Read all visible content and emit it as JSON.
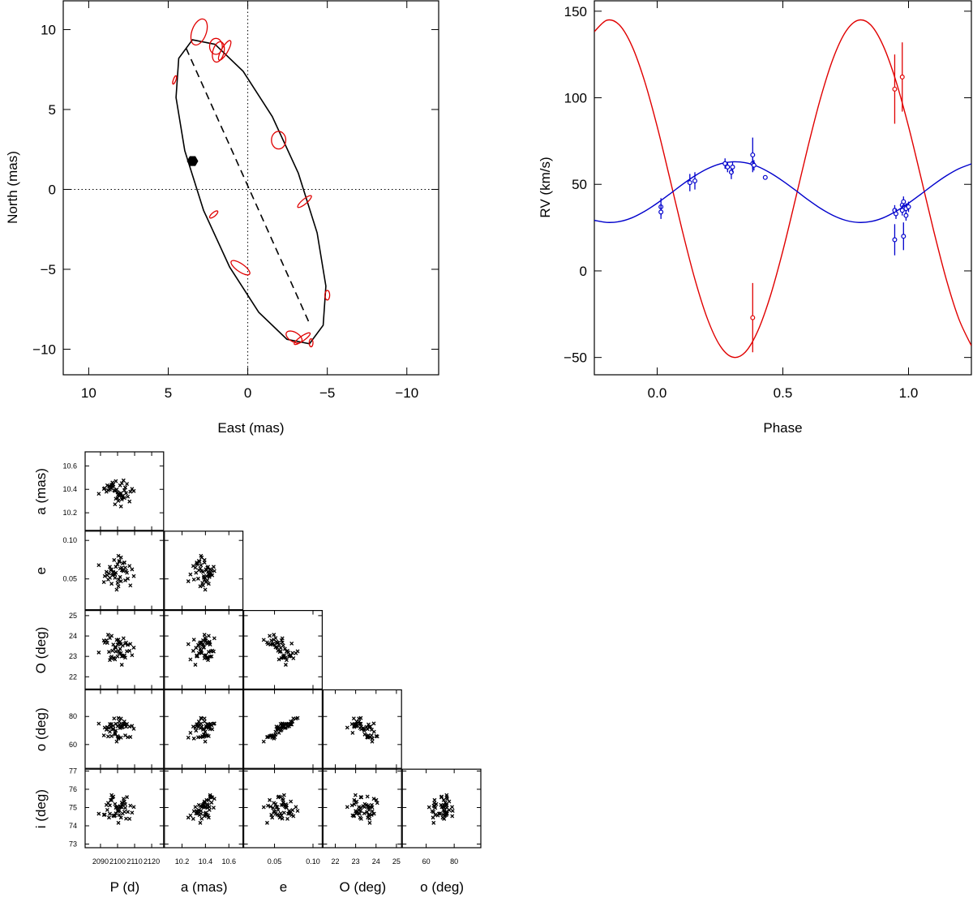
{
  "chart_data": [
    {
      "type": "orbit",
      "xlabel": "East (mas)",
      "ylabel": "North (mas)",
      "xlim": [
        11.6,
        -12.0
      ],
      "ylim": [
        -11.6,
        11.8
      ],
      "xticks": [
        10,
        5,
        0,
        {
          "value": -5,
          "label": "−5"
        },
        {
          "value": -10,
          "label": "−10"
        }
      ],
      "yticks": [
        {
          "value": -10,
          "label": "−10"
        },
        {
          "value": -5,
          "label": "−5"
        },
        0,
        5,
        10
      ],
      "orbit": {
        "color": "#000000",
        "x": [
          3.48,
          4.34,
          4.51,
          3.96,
          2.78,
          1.14,
          -0.69,
          -2.46,
          -3.88,
          -4.74,
          -4.91,
          -4.36,
          -3.18,
          -1.54,
          0.29,
          2.06
        ],
        "y": [
          9.36,
          8.2,
          5.75,
          2.42,
          -1.31,
          -4.86,
          -7.69,
          -9.38,
          -9.66,
          -8.5,
          -6.05,
          -2.72,
          1.01,
          4.56,
          7.39,
          9.08
        ]
      },
      "nodes": {
        "color": "#000000",
        "x": [
          3.88,
          -3.83
        ],
        "y": [
          8.84,
          -8.28
        ]
      },
      "marker": {
        "color": "#000000",
        "x": 3.47,
        "y": 1.77
      },
      "observations": {
        "color": "#e00000",
        "x": [
          3.06,
          2.0,
          1.85,
          1.45,
          4.6,
          -1.94,
          -3.57,
          2.14,
          0.46,
          -5.0,
          -2.91,
          -3.42,
          -3.98
        ],
        "y": [
          9.85,
          8.95,
          8.6,
          8.7,
          6.85,
          3.08,
          -0.76,
          -1.57,
          -4.9,
          -6.62,
          -9.24,
          -9.34,
          -9.6
        ],
        "rx": [
          0.45,
          0.4,
          0.35,
          0.2,
          0.08,
          0.45,
          0.15,
          0.12,
          0.25,
          0.15,
          0.3,
          0.15,
          0.12
        ],
        "ry": [
          0.85,
          0.5,
          0.65,
          0.7,
          0.28,
          0.55,
          0.55,
          0.32,
          0.7,
          0.3,
          0.55,
          0.6,
          0.25
        ],
        "angle": [
          20,
          0,
          15,
          30,
          20,
          0,
          50,
          50,
          -55,
          0,
          -60,
          55,
          0
        ]
      }
    },
    {
      "type": "rv",
      "xlabel": "Phase",
      "ylabel": "RV (km/s)",
      "xlim": [
        -0.25,
        1.25
      ],
      "ylim": [
        -60,
        156
      ],
      "xticks": [
        {
          "value": 0,
          "label": "0.0"
        },
        0.5,
        {
          "value": 1,
          "label": "1.0"
        }
      ],
      "yticks": [
        {
          "value": -50,
          "label": "−50"
        },
        0,
        50,
        100,
        150
      ],
      "x": [
        -0.25,
        -0.2,
        -0.15,
        -0.1,
        -0.05,
        0,
        0.05,
        0.1,
        0.15,
        0.2,
        0.25,
        0.3,
        0.35,
        0.4,
        0.45,
        0.5,
        0.55,
        0.6,
        0.65,
        0.7,
        0.75,
        0.8,
        0.85,
        0.9,
        0.95,
        1,
        1.05,
        1.1,
        1.15,
        1.2,
        1.25
      ],
      "series": [
        {
          "color": "#e00000",
          "values": [
            138.2,
            144.8,
            142.0,
            129.8,
            109.6,
            83.4,
            53.6,
            23.2,
            -4.8,
            -27.7,
            -43.2,
            -49.8,
            -47.0,
            -34.8,
            -14.6,
            11.6,
            41.4,
            71.8,
            99.8,
            122.7,
            138.2,
            144.8,
            142.0,
            129.8,
            109.6,
            83.4,
            53.6,
            23.2,
            -4.8,
            -27.7,
            -43.2
          ]
        },
        {
          "color": "#0000cc",
          "values": [
            29.2,
            28.0,
            28.5,
            30.7,
            34.4,
            39.1,
            44.4,
            49.9,
            54.9,
            59.0,
            61.8,
            63.0,
            62.5,
            60.3,
            56.6,
            51.9,
            46.6,
            41.1,
            36.1,
            32.0,
            29.2,
            28.0,
            28.5,
            30.7,
            34.4,
            39.1,
            44.4,
            49.9,
            54.9,
            59.0,
            61.8
          ]
        }
      ],
      "observations": [
        {
          "color": "#e00000",
          "x": [
            0.945,
            0.975,
            0.38
          ],
          "values": [
            105,
            112,
            -27
          ],
          "errors": [
            20,
            20,
            20
          ]
        },
        {
          "color": "#0000cc",
          "x": [
            0.015,
            0.015,
            0.13,
            0.15,
            0.27,
            0.28,
            0.295,
            0.3,
            0.38,
            0.38,
            0.385,
            0.43,
            0.945,
            0.95,
            0.945,
            0.975,
            0.975,
            0.98,
            0.98,
            0.99,
            0.99,
            1.0
          ],
          "values": [
            37,
            34,
            51,
            52,
            62,
            60,
            57,
            60,
            62,
            67,
            61,
            54,
            35,
            33,
            18,
            38,
            35,
            40,
            20,
            36,
            32,
            37
          ],
          "errors": [
            5,
            4,
            5,
            5,
            3,
            3,
            4,
            3,
            3,
            10,
            3,
            1,
            3,
            3,
            9,
            3,
            3,
            3,
            8,
            3,
            3,
            3
          ]
        }
      ]
    },
    {
      "type": "corner",
      "variables": [
        {
          "label": "P (d)",
          "lim": [
            2081,
            2127
          ],
          "ticks": [
            2090,
            2100,
            2110,
            2120
          ],
          "samples": [
            2101.5,
            2094,
            2104,
            2100.5,
            2097.5,
            2107.5,
            2099,
            2103,
            2095.5,
            2100,
            2105.5,
            2092,
            2102,
            2098.5,
            2104.5,
            2096.5,
            2101,
            2109.5,
            2095,
            2102.5,
            2099.5,
            2089,
            2103.5,
            2106,
            2098,
            2100,
            2096,
            2107,
            2101.5,
            2093.5,
            2103,
            2097,
            2100.5,
            2104.5,
            2099,
            2094.5,
            2108.5,
            2101,
            2097.5,
            2102,
            2095.5,
            2105,
            2098.5,
            2104,
            2092.5,
            2102.5,
            2100.5,
            2096.5
          ]
        },
        {
          "label": "a (mas)",
          "lim": [
            10.05,
            10.72
          ],
          "ticks": [
            10.2,
            10.4,
            10.6
          ],
          "samples": [
            10.356,
            10.434,
            10.392,
            10.302,
            10.422,
            10.38,
            10.47,
            10.344,
            10.398,
            10.326,
            10.446,
            10.404,
            10.368,
            10.272,
            10.416,
            10.44,
            10.35,
            10.386,
            10.428,
            10.314,
            10.398,
            10.362,
            10.476,
            10.338,
            10.392,
            10.374,
            10.41,
            10.296,
            10.434,
            10.38,
            10.332,
            10.458,
            10.356,
            10.416,
            10.32,
            10.392,
            10.404,
            10.344,
            10.44,
            10.254,
            10.422,
            10.368,
            10.386,
            10.326,
            10.41,
            10.452,
            10.362,
            10.428
          ]
        },
        {
          "label": "e",
          "lim": [
            0.01,
            0.112
          ],
          "ticks": [
            0.05,
            {
              "value": 0.1,
              "label": "0.10"
            }
          ],
          "samples": [
            0.0635,
            0.0547,
            0.0712,
            0.0492,
            0.0591,
            0.0415,
            0.0657,
            0.0613,
            0.0514,
            0.069,
            0.058,
            0.0459,
            0.0778,
            0.0558,
            0.0481,
            0.0624,
            0.0723,
            0.0536,
            0.0569,
            0.0646,
            0.036,
            0.0679,
            0.0602,
            0.0503,
            0.0745,
            0.0448,
            0.0613,
            0.0668,
            0.0525,
            0.0591,
            0.0701,
            0.0547,
            0.0404,
            0.0646,
            0.058,
            0.0492,
            0.0624,
            0.0734,
            0.0558,
            0.047,
            0.0657,
            0.0602,
            0.0514,
            0.0712,
            0.0536,
            0.0613,
            0.08,
            0.0437
          ]
        },
        {
          "label": "O (deg)",
          "lim": [
            21.4,
            25.25
          ],
          "ticks": [
            22,
            23,
            24,
            25
          ],
          "samples": [
            23.37,
            23.66,
            23.05,
            23.82,
            22.92,
            23.61,
            23.24,
            23.53,
            23.9,
            23.0,
            23.25,
            23.78,
            23.16,
            22.85,
            23.62,
            22.99,
            23.63,
            23.43,
            23.22,
            22.59,
            23.81,
            23.19,
            23.89,
            23.56,
            22.91,
            23.58,
            22.93,
            23.27,
            23.72,
            23.79,
            23.02,
            23.28,
            23.69,
            22.94,
            23.42,
            24.06,
            23.06,
            23.17,
            23.58,
            23.6,
            22.82,
            23.68,
            23.45,
            23.05,
            23.67,
            23.0,
            23.25,
            24.01
          ]
        },
        {
          "label": "o (deg)",
          "lim": [
            43,
            99
          ],
          "ticks": [
            60,
            80
          ],
          "samples": [
            71.7,
            72.4,
            76.4,
            64.3,
            73.4,
            65.4,
            74.8,
            72.6,
            69.1,
            73.0,
            74.7,
            66.5,
            78.5,
            68.3,
            66.5,
            74.6,
            74.3,
            71.2,
            71.8,
            72.1,
            62.1,
            74.9,
            75.0,
            65.2,
            78.6,
            66.0,
            72.5,
            72.8,
            72.8,
            70.6,
            74.4,
            70.9,
            65.3,
            74.3,
            69.9,
            65.8,
            73.3,
            76.4,
            71.0,
            64.9,
            74.6,
            72.7,
            67.2,
            74.4,
            72.1,
            73.7,
            78.9,
            66.0
          ]
        },
        {
          "label": "i (deg)",
          "lim": [
            72.8,
            77.1
          ],
          "ticks": [
            73,
            74,
            75,
            76,
            77
          ],
          "samples": [
            75.08,
            74.87,
            75.33,
            74.8,
            74.56,
            75.1,
            74.99,
            75.14,
            74.66,
            74.81,
            75.57,
            74.6,
            75.03,
            74.57,
            74.98,
            75.68,
            74.59,
            75.03,
            74.45,
            75.03,
            75.02,
            74.66,
            75.48,
            74.76,
            74.53,
            75.05,
            75.41,
            74.38,
            75.03,
            75.14,
            74.67,
            75.56,
            74.16,
            75.18,
            74.68,
            75.25,
            74.72,
            74.86,
            75.6,
            74.45,
            75.12,
            74.39,
            75.19,
            74.77,
            74.61,
            75.27,
            74.82,
            75.41
          ]
        }
      ]
    }
  ]
}
